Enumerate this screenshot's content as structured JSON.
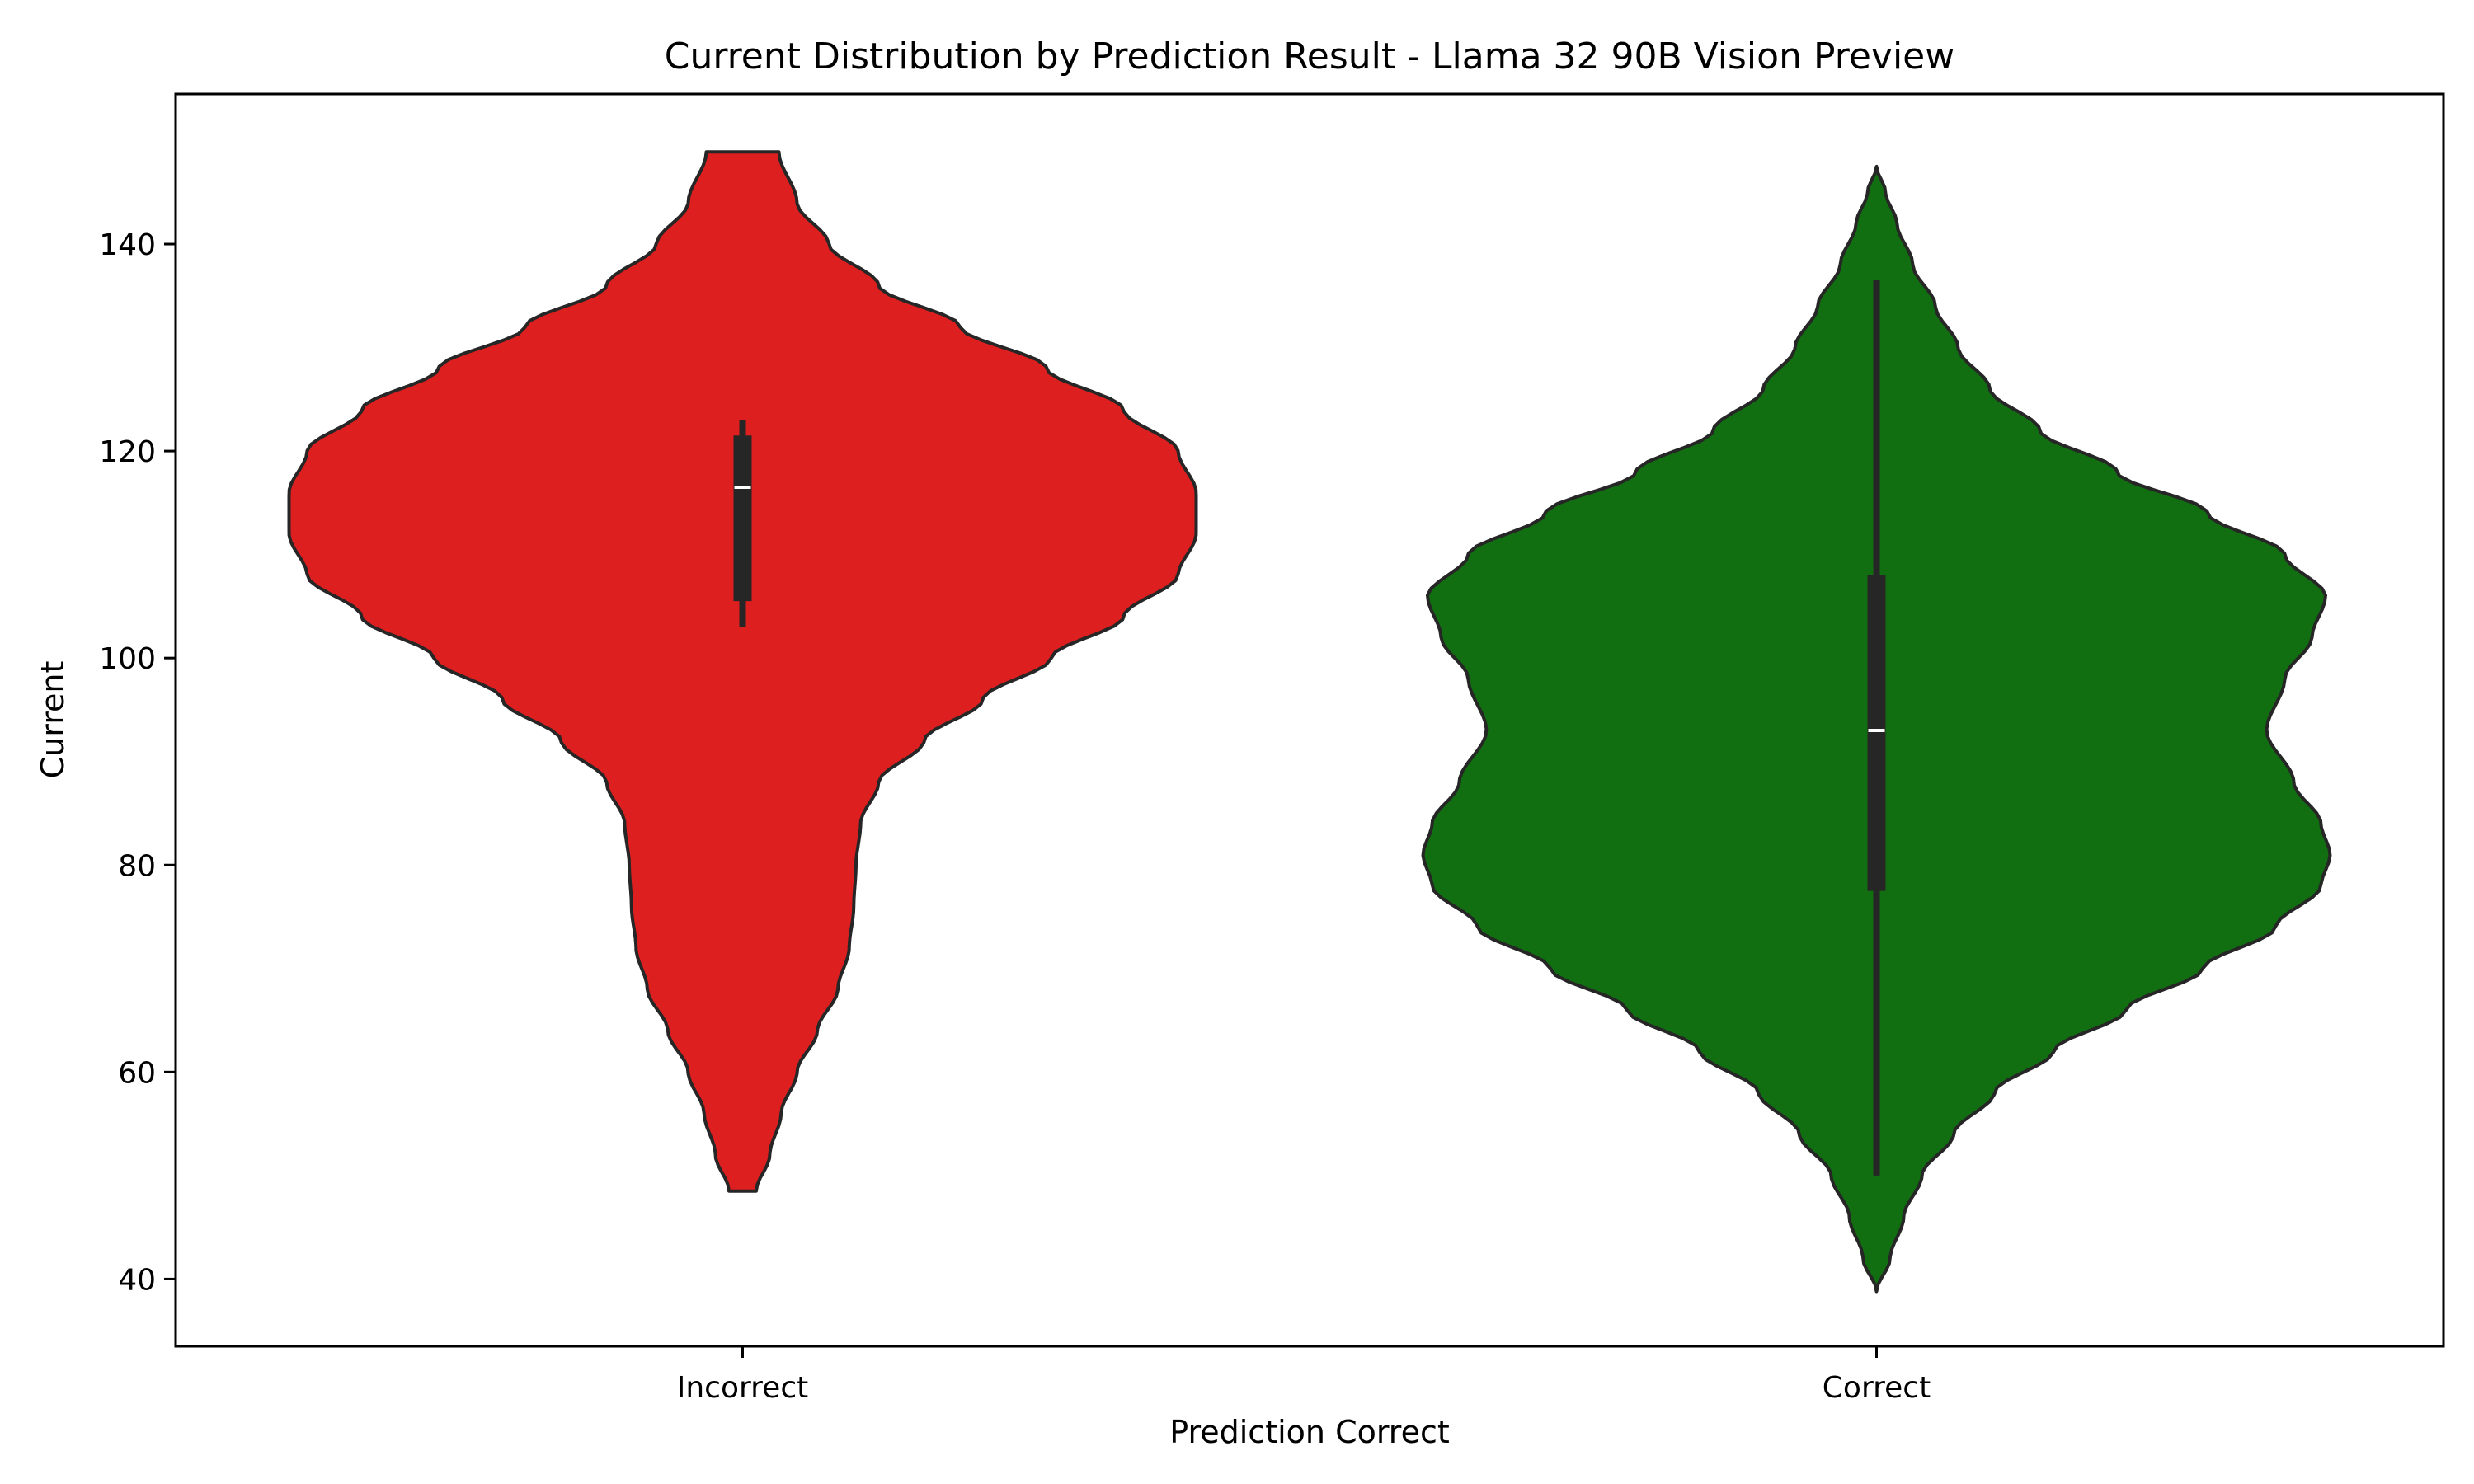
{
  "chart_data": {
    "type": "violin",
    "title": "Current Distribution by Prediction Result - Llama 32 90B Vision Preview",
    "xlabel": "Prediction Correct",
    "ylabel": "Current",
    "ylim": [
      33.5,
      154.5
    ],
    "yticks": [
      40,
      60,
      80,
      100,
      120,
      140
    ],
    "grid": false,
    "legend": "none",
    "categories": [
      "Incorrect",
      "Correct"
    ],
    "series": [
      {
        "category": "Incorrect",
        "color": "#dd1f20",
        "range": [
          48.5,
          148.9
        ],
        "whisker": [
          103,
          123
        ],
        "q1": 105.5,
        "median": 116.5,
        "q3": 121.5,
        "density": [
          [
            48.5,
            0.03
          ],
          [
            52,
            0.06
          ],
          [
            56,
            0.085
          ],
          [
            60,
            0.12
          ],
          [
            64,
            0.165
          ],
          [
            68,
            0.21
          ],
          [
            72,
            0.235
          ],
          [
            76,
            0.245
          ],
          [
            80,
            0.25
          ],
          [
            84,
            0.26
          ],
          [
            88,
            0.3
          ],
          [
            92,
            0.4
          ],
          [
            96,
            0.53
          ],
          [
            100,
            0.68
          ],
          [
            104,
            0.84
          ],
          [
            108,
            0.96
          ],
          [
            112,
            1.0
          ],
          [
            116,
            1.0
          ],
          [
            120,
            0.96
          ],
          [
            124,
            0.84
          ],
          [
            128,
            0.67
          ],
          [
            132,
            0.48
          ],
          [
            136,
            0.3
          ],
          [
            140,
            0.19
          ],
          [
            144,
            0.12
          ],
          [
            148.9,
            0.08
          ]
        ]
      },
      {
        "category": "Correct",
        "color": "#116e11",
        "range": [
          38.8,
          147.5
        ],
        "whisker": [
          50,
          136.5
        ],
        "q1": 77.5,
        "median": 93,
        "q3": 108,
        "density": [
          [
            38.8,
            0.0
          ],
          [
            42,
            0.03
          ],
          [
            46,
            0.06
          ],
          [
            50,
            0.1
          ],
          [
            54,
            0.17
          ],
          [
            58,
            0.26
          ],
          [
            62,
            0.39
          ],
          [
            66,
            0.55
          ],
          [
            70,
            0.72
          ],
          [
            74,
            0.88
          ],
          [
            78,
            0.98
          ],
          [
            81,
            1.0
          ],
          [
            84,
            0.98
          ],
          [
            88,
            0.92
          ],
          [
            93,
            0.86
          ],
          [
            98,
            0.9
          ],
          [
            102,
            0.96
          ],
          [
            106,
            0.99
          ],
          [
            110,
            0.9
          ],
          [
            114,
            0.73
          ],
          [
            118,
            0.53
          ],
          [
            122,
            0.36
          ],
          [
            126,
            0.25
          ],
          [
            130,
            0.18
          ],
          [
            134,
            0.13
          ],
          [
            138,
            0.08
          ],
          [
            142,
            0.045
          ],
          [
            145,
            0.02
          ],
          [
            147.5,
            0.0
          ]
        ]
      }
    ]
  }
}
